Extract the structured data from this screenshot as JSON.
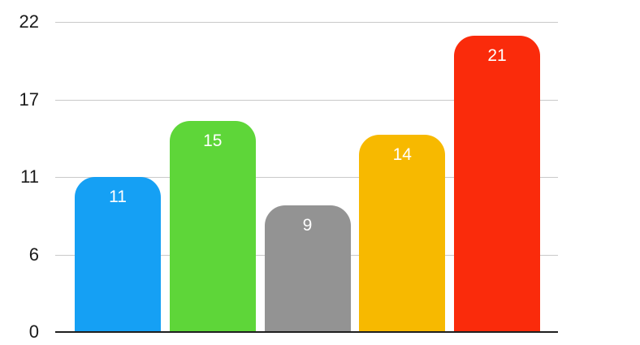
{
  "chart_data": {
    "type": "bar",
    "title": "",
    "xlabel": "",
    "ylabel": "",
    "values": [
      11,
      15,
      9,
      14,
      21
    ],
    "data_labels": [
      "11",
      "15",
      "9",
      "14",
      "21"
    ],
    "bar_colors": [
      "#15A0F4",
      "#5ED639",
      "#939393",
      "#F7B900",
      "#FA2B0B"
    ],
    "ylim": [
      0,
      22
    ],
    "yticks": [
      {
        "value": 22,
        "label": "22"
      },
      {
        "value": 16.5,
        "label": "17"
      },
      {
        "value": 11,
        "label": "11"
      },
      {
        "value": 5.5,
        "label": "6"
      },
      {
        "value": 0,
        "label": "0"
      }
    ],
    "grid": true,
    "legend": "none",
    "x_axis_labels": "none",
    "colors": {
      "background": "#FFFFFF",
      "gridline": "#C9C9C9",
      "axis_line": "#1F1F1F",
      "tick_label": "#1A1A1A",
      "data_label": "#FFFFFF"
    }
  }
}
